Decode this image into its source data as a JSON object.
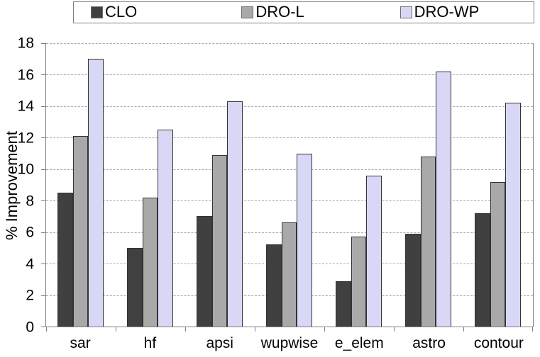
{
  "chart_data": {
    "type": "bar",
    "title": "",
    "xlabel": "",
    "ylabel": "% Improvement",
    "ylim": [
      0,
      18
    ],
    "ytick_step": 2,
    "grid": "horizontal-dashed",
    "legend_position": "top",
    "categories": [
      "sar",
      "hf",
      "apsi",
      "wupwise",
      "e_elem",
      "astro",
      "contour"
    ],
    "series": [
      {
        "name": "CLO",
        "color": "#404040",
        "values": [
          8.5,
          5.0,
          7.0,
          5.2,
          2.9,
          5.9,
          7.2
        ]
      },
      {
        "name": "DRO-L",
        "color": "#A9A9A9",
        "values": [
          12.1,
          8.2,
          10.9,
          6.6,
          5.7,
          10.8,
          9.2
        ]
      },
      {
        "name": "DRO-WP",
        "color": "#D8D8F6",
        "values": [
          17.0,
          12.5,
          14.3,
          11.0,
          9.6,
          16.2,
          14.2
        ]
      }
    ],
    "colors": {
      "bar_border": "#333333",
      "axis": "#7F7F7F",
      "gridline": "#A9A9A9",
      "legend_border": "#7F7F7F",
      "background": "#FFFFFF",
      "text": "#000000"
    }
  }
}
